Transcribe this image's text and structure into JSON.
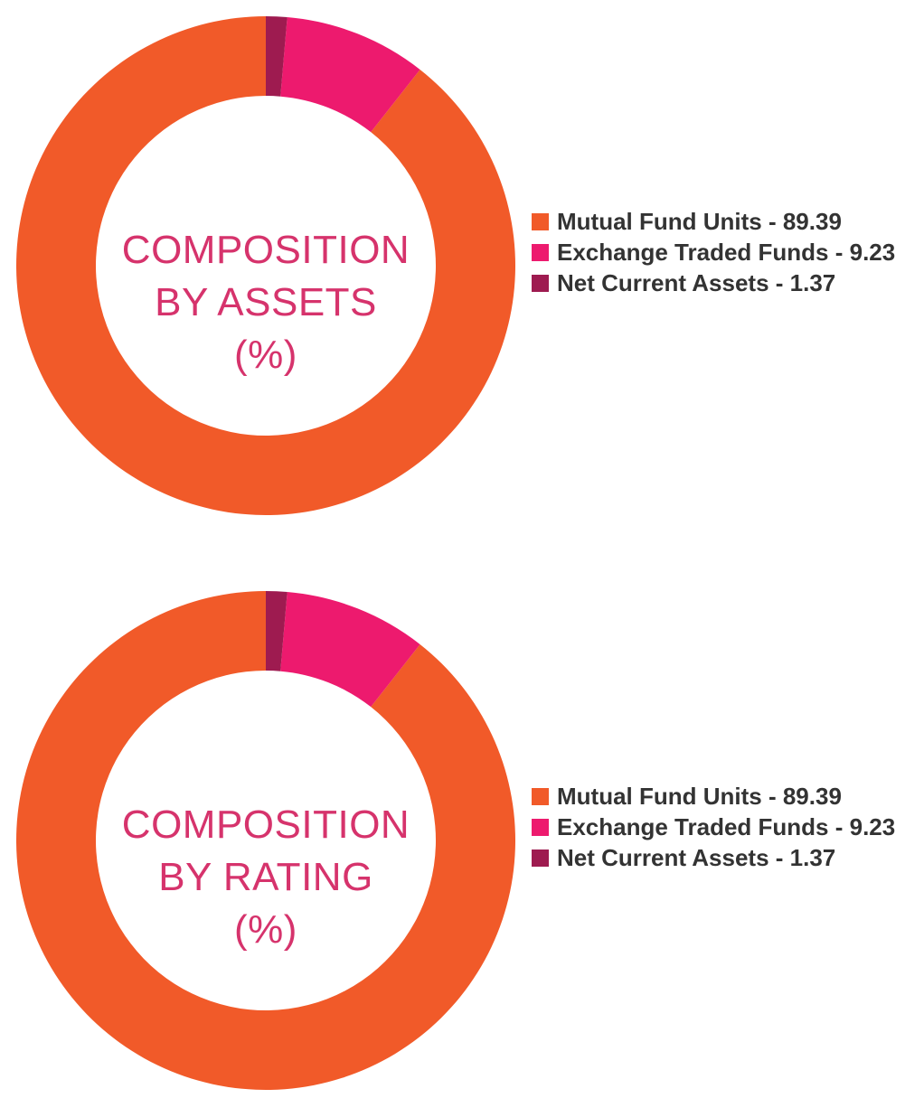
{
  "chart_data": [
    {
      "type": "pie",
      "title": [
        "COMPOSITION",
        "BY ASSETS",
        "(%)"
      ],
      "legend_placement": "right",
      "slices": [
        {
          "name": "Mutual Fund Units",
          "value": 89.39,
          "color": "#f15a29",
          "legend_text": "Mutual Fund Units - 89.39"
        },
        {
          "name": "Exchange Traded Funds",
          "value": 9.23,
          "color": "#ed1a6e",
          "legend_text": "Exchange Traded Funds - 9.23"
        },
        {
          "name": "Net Current Assets",
          "value": 1.37,
          "color": "#9e1b50",
          "legend_text": "Net Current Assets - 1.37"
        }
      ]
    },
    {
      "type": "pie",
      "title": [
        "COMPOSITION",
        "BY RATING",
        "(%)"
      ],
      "legend_placement": "right",
      "slices": [
        {
          "name": "Mutual Fund Units",
          "value": 89.39,
          "color": "#f15a29",
          "legend_text": "Mutual Fund Units - 89.39"
        },
        {
          "name": "Exchange Traded Funds",
          "value": 9.23,
          "color": "#ed1a6e",
          "legend_text": "Exchange Traded Funds - 9.23"
        },
        {
          "name": "Net Current Assets",
          "value": 1.37,
          "color": "#9e1b50",
          "legend_text": "Net Current Assets - 1.37"
        }
      ]
    }
  ]
}
